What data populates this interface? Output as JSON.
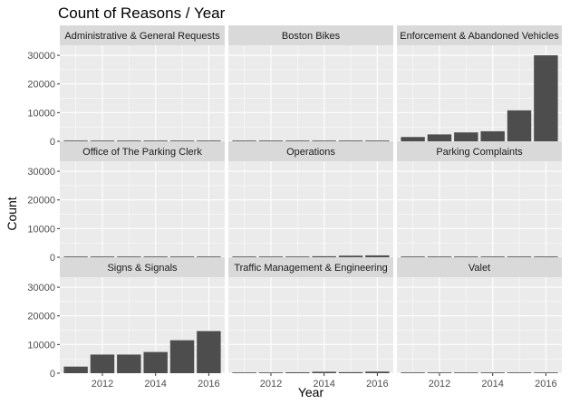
{
  "chart_data": {
    "type": "bar",
    "title": "Count of Reasons / Year",
    "xlabel": "Year",
    "ylabel": "Count",
    "x": [
      2011,
      2012,
      2013,
      2014,
      2015,
      2016
    ],
    "x_ticks": [
      "2012",
      "2014",
      "2016"
    ],
    "y_ticks": [
      "0",
      "10000",
      "20000",
      "30000"
    ],
    "ylim": [
      0,
      33500
    ],
    "xlim": [
      2010.4,
      2016.6
    ],
    "grid": true,
    "facet_rows": 3,
    "facet_cols": 3,
    "colors": {
      "bar": "#4d4d4d",
      "panel_bg": "#ebebeb",
      "strip_bg": "#d9d9d9",
      "grid": "#ffffff"
    },
    "panels": [
      {
        "label": "Administrative & General Requests",
        "values": [
          80,
          250,
          160,
          200,
          190,
          150
        ]
      },
      {
        "label": "Boston Bikes",
        "values": [
          0,
          0,
          0,
          0,
          40,
          60
        ]
      },
      {
        "label": "Enforcement & Abandoned Vehicles",
        "values": [
          1500,
          2400,
          3100,
          3500,
          10800,
          30000
        ]
      },
      {
        "label": "Office of The Parking Clerk",
        "values": [
          0,
          20,
          10,
          40,
          30,
          20
        ]
      },
      {
        "label": "Operations",
        "values": [
          180,
          180,
          250,
          350,
          550,
          650
        ]
      },
      {
        "label": "Parking Complaints",
        "values": [
          0,
          0,
          0,
          0,
          10,
          10
        ]
      },
      {
        "label": "Signs & Signals",
        "values": [
          2300,
          6500,
          6500,
          7400,
          11500,
          14700
        ]
      },
      {
        "label": "Traffic Management & Engineering",
        "values": [
          100,
          150,
          300,
          500,
          350,
          550
        ]
      },
      {
        "label": "Valet",
        "values": [
          0,
          0,
          0,
          0,
          0,
          0
        ]
      }
    ]
  }
}
